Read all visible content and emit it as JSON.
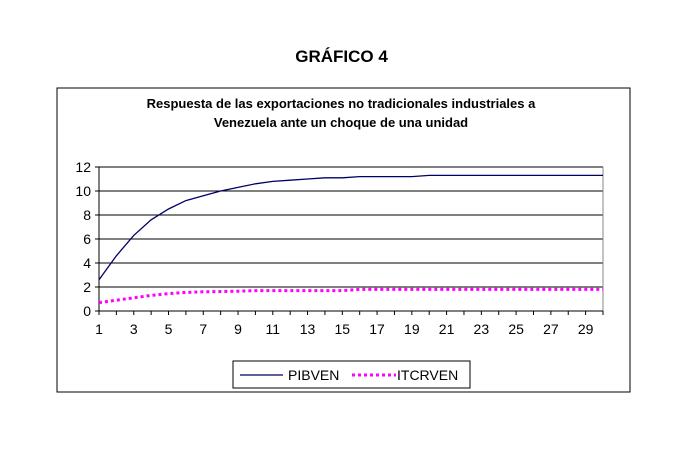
{
  "page_title": "GRÁFICO 4",
  "chart_data": {
    "type": "line",
    "title_lines": [
      "Respuesta de las exportaciones no tradicionales industriales a",
      "Venezuela ante un choque de una unidad"
    ],
    "xlabel": "",
    "ylabel": "",
    "x": [
      1,
      2,
      3,
      4,
      5,
      6,
      7,
      8,
      9,
      10,
      11,
      12,
      13,
      14,
      15,
      16,
      17,
      18,
      19,
      20,
      21,
      22,
      23,
      24,
      25,
      26,
      27,
      28,
      29,
      30
    ],
    "x_tick_labels": [
      "1",
      "3",
      "5",
      "7",
      "9",
      "11",
      "13",
      "15",
      "17",
      "19",
      "21",
      "23",
      "25",
      "27",
      "29"
    ],
    "ylim": [
      0,
      12
    ],
    "y_ticks": [
      0,
      2,
      4,
      6,
      8,
      10,
      12
    ],
    "grid": "horizontal",
    "legend_position": "bottom",
    "series": [
      {
        "name": "PIBVEN",
        "color": "#000066",
        "style": "solid",
        "values": [
          2.6,
          4.6,
          6.3,
          7.6,
          8.5,
          9.2,
          9.6,
          10.0,
          10.3,
          10.6,
          10.8,
          10.9,
          11.0,
          11.1,
          11.1,
          11.2,
          11.2,
          11.2,
          11.2,
          11.3,
          11.3,
          11.3,
          11.3,
          11.3,
          11.3,
          11.3,
          11.3,
          11.3,
          11.3,
          11.3
        ]
      },
      {
        "name": "ITCRVEN",
        "color": "#ff00ff",
        "style": "dotted",
        "values": [
          0.7,
          0.9,
          1.1,
          1.3,
          1.45,
          1.55,
          1.6,
          1.62,
          1.65,
          1.7,
          1.7,
          1.7,
          1.7,
          1.7,
          1.7,
          1.8,
          1.8,
          1.8,
          1.8,
          1.8,
          1.8,
          1.8,
          1.8,
          1.8,
          1.8,
          1.8,
          1.8,
          1.8,
          1.8,
          1.8
        ]
      }
    ]
  }
}
